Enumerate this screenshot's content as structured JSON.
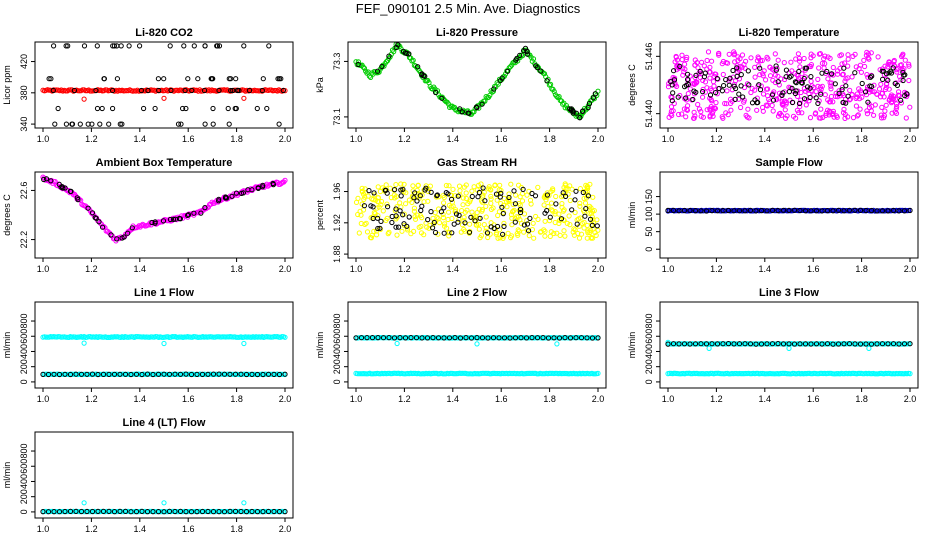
{
  "figure_title": "FEF_090101  2.5 Min. Ave. Diagnostics",
  "colors": {
    "black": "#000000",
    "red": "#ff0000",
    "green": "#00cc00",
    "magenta": "#ff00ff",
    "yellow": "#ffff00",
    "blue": "#0000cc",
    "cyan": "#00ffff"
  },
  "chart_data": [
    {
      "type": "scatter",
      "title": "Li-820 CO2",
      "ylabel": "Licor ppm",
      "xlim": [
        1.0,
        2.0
      ],
      "ylim": [
        335,
        445
      ],
      "x_ticks": [
        "1.0",
        "1.2",
        "1.4",
        "1.6",
        "1.8",
        "2.0"
      ],
      "y_ticks": [
        "340",
        "380",
        "420"
      ],
      "series": [
        {
          "color": "red",
          "kind": "flat",
          "level": 383,
          "noise": 1,
          "outliers": [
            [
              1.17,
              372
            ],
            [
              1.5,
              373
            ],
            [
              1.83,
              373
            ]
          ]
        },
        {
          "color": "black",
          "kind": "band",
          "levels": [
            340,
            360,
            383,
            398,
            440
          ],
          "count": 90
        }
      ]
    },
    {
      "type": "scatter",
      "title": "Li-820 Pressure",
      "ylabel": "kPa",
      "xlim": [
        1.0,
        2.0
      ],
      "ylim": [
        73.06,
        73.37
      ],
      "x_ticks": [
        "1.0",
        "1.2",
        "1.4",
        "1.6",
        "1.8",
        "2.0"
      ],
      "y_ticks": [
        "73.1",
        "73.3"
      ],
      "series": [
        {
          "color": "green",
          "kind": "curve",
          "points": [
            [
              1.0,
              73.3
            ],
            [
              1.06,
              73.25
            ],
            [
              1.1,
              73.27
            ],
            [
              1.17,
              73.36
            ],
            [
              1.22,
              73.32
            ],
            [
              1.3,
              73.22
            ],
            [
              1.4,
              73.13
            ],
            [
              1.48,
              73.11
            ],
            [
              1.55,
              73.18
            ],
            [
              1.63,
              73.27
            ],
            [
              1.7,
              73.34
            ],
            [
              1.78,
              73.25
            ],
            [
              1.85,
              73.15
            ],
            [
              1.92,
              73.1
            ],
            [
              1.96,
              73.14
            ],
            [
              2.0,
              73.19
            ]
          ],
          "noise": 0.008
        },
        {
          "color": "black",
          "kind": "curve_sparse",
          "noise": 0.008
        }
      ]
    },
    {
      "type": "scatter",
      "title": "Li-820 Temperature",
      "ylabel": "degrees C",
      "xlim": [
        1.0,
        2.0
      ],
      "ylim": [
        51.4385,
        51.4475
      ],
      "x_ticks": [
        "1.0",
        "1.2",
        "1.4",
        "1.6",
        "1.8",
        "2.0"
      ],
      "y_ticks": [
        "51.440",
        "51.446"
      ],
      "series": [
        {
          "color": "magenta",
          "kind": "band",
          "levels": [
            51.4395,
            51.4465
          ],
          "count": 520
        },
        {
          "color": "black",
          "kind": "band",
          "levels": [
            51.441,
            51.445
          ],
          "count": 120
        }
      ]
    },
    {
      "type": "scatter",
      "title": "Ambient Box Temperature",
      "ylabel": "degrees C",
      "xlim": [
        1.0,
        2.0
      ],
      "ylim": [
        22.05,
        22.75
      ],
      "x_ticks": [
        "1.0",
        "1.2",
        "1.4",
        "1.6",
        "1.8",
        "2.0"
      ],
      "y_ticks": [
        "22.2",
        "22.6"
      ],
      "series": [
        {
          "color": "magenta",
          "kind": "curve",
          "points": [
            [
              1.0,
              22.7
            ],
            [
              1.05,
              22.66
            ],
            [
              1.12,
              22.58
            ],
            [
              1.2,
              22.42
            ],
            [
              1.25,
              22.3
            ],
            [
              1.3,
              22.2
            ],
            [
              1.33,
              22.22
            ],
            [
              1.37,
              22.3
            ],
            [
              1.45,
              22.33
            ],
            [
              1.55,
              22.37
            ],
            [
              1.65,
              22.42
            ],
            [
              1.7,
              22.5
            ],
            [
              1.8,
              22.57
            ],
            [
              1.9,
              22.63
            ],
            [
              2.0,
              22.67
            ]
          ],
          "noise": 0.012
        },
        {
          "color": "black",
          "kind": "curve_sparse",
          "noise": 0.01
        }
      ]
    },
    {
      "type": "scatter",
      "title": "Gas Stream RH",
      "ylabel": "percent",
      "xlim": [
        1.0,
        2.0
      ],
      "ylim": [
        1.875,
        1.985
      ],
      "x_ticks": [
        "1.0",
        "1.2",
        "1.4",
        "1.6",
        "1.8",
        "2.0"
      ],
      "y_ticks": [
        "1.88",
        "1.92",
        "1.96"
      ],
      "series": [
        {
          "color": "yellow",
          "kind": "band",
          "levels": [
            1.9,
            1.97
          ],
          "count": 420
        },
        {
          "color": "black",
          "kind": "band",
          "levels": [
            1.905,
            1.965
          ],
          "count": 110
        }
      ]
    },
    {
      "type": "scatter",
      "title": "Sample Flow",
      "ylabel": "ml/min",
      "xlim": [
        1.0,
        2.0
      ],
      "ylim": [
        -25,
        220
      ],
      "x_ticks": [
        "1.0",
        "1.2",
        "1.4",
        "1.6",
        "1.8",
        "2.0"
      ],
      "y_ticks": [
        "0",
        "50",
        "100",
        "150"
      ],
      "series": [
        {
          "color": "blue",
          "kind": "flat",
          "level": 110,
          "noise": 1
        },
        {
          "color": "black",
          "kind": "flat_sparse",
          "level": 110,
          "noise": 1
        }
      ]
    },
    {
      "type": "scatter",
      "title": "Line 1 Flow",
      "ylabel": "ml/min",
      "xlim": [
        1.0,
        2.0
      ],
      "ylim": [
        -80,
        1050
      ],
      "x_ticks": [
        "1.0",
        "1.2",
        "1.4",
        "1.6",
        "1.8",
        "2.0"
      ],
      "y_ticks": [
        "0",
        "200",
        "400",
        "600",
        "800"
      ],
      "series": [
        {
          "color": "cyan",
          "kind": "flat",
          "level": 590,
          "noise": 6,
          "outliers": [
            [
              1.17,
              510
            ],
            [
              1.5,
              505
            ],
            [
              1.83,
              505
            ]
          ]
        },
        {
          "color": "cyan",
          "kind": "flat",
          "level": 100,
          "noise": 3
        },
        {
          "color": "black",
          "kind": "flat_sparse",
          "level": 100,
          "noise": 3
        }
      ]
    },
    {
      "type": "scatter",
      "title": "Line 2 Flow",
      "ylabel": "ml/min",
      "xlim": [
        1.0,
        2.0
      ],
      "ylim": [
        -80,
        1050
      ],
      "x_ticks": [
        "1.0",
        "1.2",
        "1.4",
        "1.6",
        "1.8",
        "2.0"
      ],
      "y_ticks": [
        "0",
        "200",
        "400",
        "600",
        "800"
      ],
      "series": [
        {
          "color": "cyan",
          "kind": "flat",
          "level": 110,
          "noise": 4
        },
        {
          "color": "cyan",
          "kind": "flat",
          "level": 580,
          "noise": 3,
          "outliers": [
            [
              1.17,
              505
            ],
            [
              1.5,
              500
            ],
            [
              1.83,
              500
            ]
          ]
        },
        {
          "color": "black",
          "kind": "flat_sparse",
          "level": 580,
          "noise": 3
        }
      ]
    },
    {
      "type": "scatter",
      "title": "Line 3 Flow",
      "ylabel": "ml/min",
      "xlim": [
        1.0,
        2.0
      ],
      "ylim": [
        -80,
        1050
      ],
      "x_ticks": [
        "1.0",
        "1.2",
        "1.4",
        "1.6",
        "1.8",
        "2.0"
      ],
      "y_ticks": [
        "0",
        "200",
        "400",
        "600",
        "800"
      ],
      "series": [
        {
          "color": "cyan",
          "kind": "flat",
          "level": 110,
          "noise": 4
        },
        {
          "color": "cyan",
          "kind": "flat",
          "level": 500,
          "noise": 3,
          "outliers": [
            [
              1.0,
              520
            ],
            [
              1.17,
              440
            ],
            [
              1.5,
              440
            ],
            [
              1.83,
              440
            ]
          ]
        },
        {
          "color": "black",
          "kind": "flat_sparse",
          "level": 500,
          "noise": 3
        }
      ]
    },
    {
      "type": "scatter",
      "title": "Line 4 (LT) Flow",
      "ylabel": "ml/min",
      "xlim": [
        1.0,
        2.0
      ],
      "ylim": [
        -80,
        1050
      ],
      "x_ticks": [
        "1.0",
        "1.2",
        "1.4",
        "1.6",
        "1.8",
        "2.0"
      ],
      "y_ticks": [
        "0",
        "200",
        "400",
        "600",
        "800"
      ],
      "series": [
        {
          "color": "cyan",
          "kind": "flat",
          "level": 5,
          "noise": 2,
          "outliers": [
            [
              1.17,
              120
            ],
            [
              1.5,
              120
            ],
            [
              1.83,
              120
            ]
          ]
        },
        {
          "color": "black",
          "kind": "flat_sparse",
          "level": 5,
          "noise": 2
        }
      ]
    }
  ]
}
